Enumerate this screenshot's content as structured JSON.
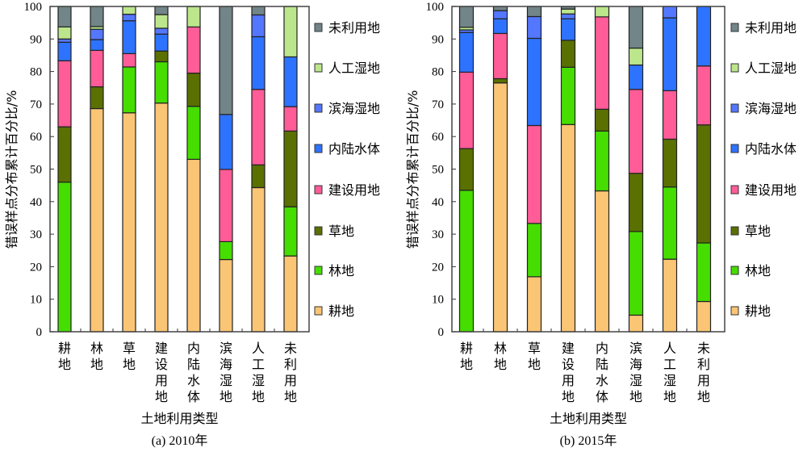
{
  "chart_data": [
    {
      "type": "bar",
      "stacked": true,
      "title": "(a) 2010年",
      "xlabel": "土地利用类型",
      "ylabel": "错误样点分布累计百分比/%",
      "ylim": [
        0,
        100
      ],
      "yticks": [
        "0",
        "10",
        "20",
        "30",
        "40",
        "50",
        "60",
        "70",
        "80",
        "90",
        "100"
      ],
      "legend_position": "right",
      "categories": [
        "耕地",
        "林地",
        "草地",
        "建设用地",
        "内陆水体",
        "滨海湿地",
        "人工湿地",
        "未利用地"
      ],
      "series": [
        {
          "name": "耕地",
          "color": "#FAC575",
          "values": [
            0,
            68.6,
            67.3,
            70.3,
            53,
            22.2,
            44.3,
            23.3
          ]
        },
        {
          "name": "林地",
          "color": "#46DD00",
          "values": [
            46,
            0,
            14.1,
            12.7,
            16.3,
            5.5,
            0,
            15.1
          ]
        },
        {
          "name": "草地",
          "color": "#5A7000",
          "values": [
            17,
            6.7,
            0,
            3.3,
            10.2,
            0,
            7,
            23.3
          ]
        },
        {
          "name": "建设用地",
          "color": "#FF5C98",
          "values": [
            20.3,
            11.2,
            4.1,
            0,
            14.2,
            22.2,
            23.2,
            7.5
          ]
        },
        {
          "name": "内陆水体",
          "color": "#2E73FF",
          "values": [
            5.7,
            3.3,
            10.1,
            5.2,
            0,
            16.9,
            16.2,
            15.3
          ]
        },
        {
          "name": "滨海湿地",
          "color": "#5477FF",
          "values": [
            1,
            3.2,
            2,
            1.8,
            0,
            0,
            6.7,
            0
          ]
        },
        {
          "name": "人工湿地",
          "color": "#BCE68C",
          "values": [
            3.7,
            0.8,
            2.4,
            4.2,
            6.3,
            0,
            0,
            15.5
          ]
        },
        {
          "name": "未利用地",
          "color": "#728588",
          "values": [
            6.3,
            6.2,
            0,
            2.5,
            0,
            33.2,
            2.6,
            0
          ]
        }
      ]
    },
    {
      "type": "bar",
      "stacked": true,
      "title": "(b) 2015年",
      "xlabel": "土地利用类型",
      "ylabel": "错误样点分布累计百分比/%",
      "ylim": [
        0,
        100
      ],
      "yticks": [
        "0",
        "10",
        "20",
        "30",
        "40",
        "50",
        "60",
        "70",
        "80",
        "90",
        "100"
      ],
      "legend_position": "right",
      "categories": [
        "耕地",
        "林地",
        "草地",
        "建设用地",
        "内陆水体",
        "滨海湿地",
        "人工湿地",
        "未利用地"
      ],
      "series": [
        {
          "name": "耕地",
          "color": "#FAC575",
          "values": [
            0,
            76.5,
            16.9,
            63.7,
            43.3,
            5.1,
            22.3,
            9.3
          ]
        },
        {
          "name": "林地",
          "color": "#46DD00",
          "values": [
            43.5,
            0,
            16.4,
            17.6,
            18.4,
            25.7,
            22.2,
            18
          ]
        },
        {
          "name": "草地",
          "color": "#5A7000",
          "values": [
            12.8,
            1.3,
            0,
            8.3,
            6.7,
            17.9,
            14.7,
            36.3
          ]
        },
        {
          "name": "建设用地",
          "color": "#FF5C98",
          "values": [
            23.5,
            13.9,
            30.1,
            0,
            28.4,
            25.8,
            14.9,
            18.1
          ]
        },
        {
          "name": "内陆水体",
          "color": "#2E73FF",
          "values": [
            12.2,
            4.5,
            26.8,
            6.6,
            0,
            7.5,
            22.4,
            18.3
          ]
        },
        {
          "name": "滨海湿地",
          "color": "#5477FF",
          "values": [
            0.8,
            2.5,
            6.7,
            1.5,
            0,
            0,
            3.5,
            0
          ]
        },
        {
          "name": "人工湿地",
          "color": "#BCE68C",
          "values": [
            0.8,
            0,
            0,
            1.5,
            3.2,
            5.2,
            0,
            0
          ]
        },
        {
          "name": "未利用地",
          "color": "#728588",
          "values": [
            6.4,
            1.3,
            3.1,
            0.8,
            0,
            12.8,
            0,
            0
          ]
        }
      ]
    }
  ]
}
